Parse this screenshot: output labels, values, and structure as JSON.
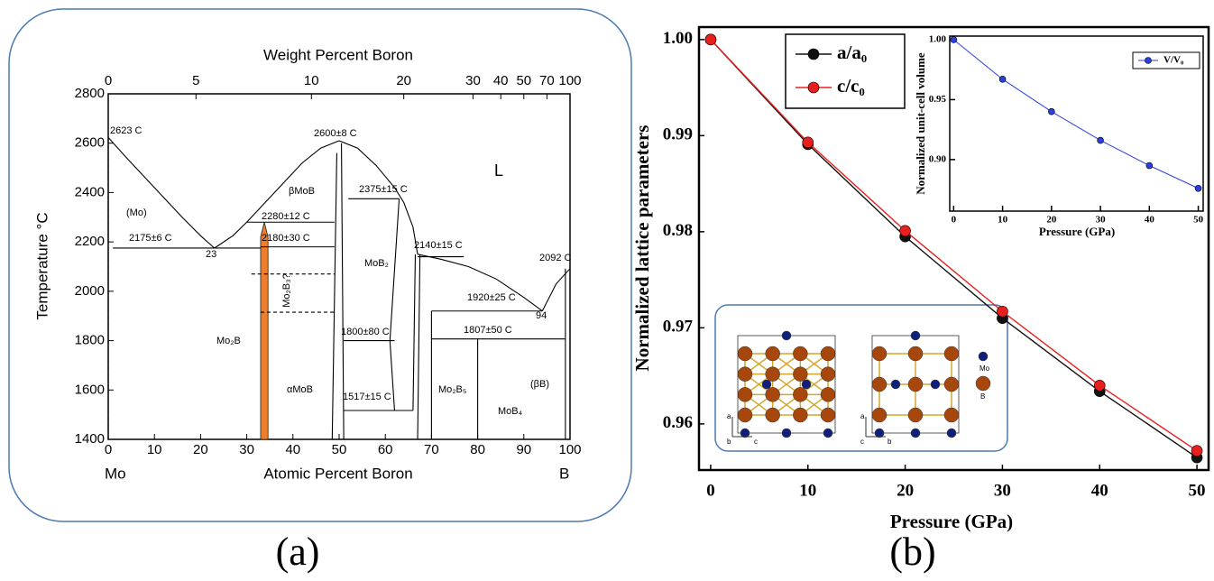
{
  "chart_data": [
    {
      "type": "phase-diagram",
      "panel_label": "(a)",
      "x_label": "Atomic Percent Boron",
      "x2_label": "Weight Percent Boron",
      "y_label": "Temperature °C",
      "xlim": [
        0,
        100
      ],
      "xticks": [
        0,
        10,
        20,
        30,
        40,
        50,
        60,
        70,
        80,
        90,
        100
      ],
      "x2ticks": [
        {
          "value": 0,
          "label": "0"
        },
        {
          "value": 19,
          "label": "5"
        },
        {
          "value": 44,
          "label": "10"
        },
        {
          "value": 64,
          "label": "20"
        },
        {
          "value": 79,
          "label": "30"
        },
        {
          "value": 85,
          "label": "40"
        },
        {
          "value": 90,
          "label": "50"
        },
        {
          "value": 95,
          "label": "70"
        },
        {
          "value": 100,
          "label": "100"
        }
      ],
      "ylim": [
        1400,
        2800
      ],
      "yticks": [
        1400,
        1600,
        1800,
        2000,
        2200,
        2400,
        2600,
        2800
      ],
      "end_labels": [
        "Mo",
        "B"
      ],
      "annotations": [
        "2623 C",
        "(Mo)",
        "2175±6 C",
        "23",
        "2600±8 C",
        "L",
        "βMoB",
        "2375±15 C",
        "2280±12 C",
        "2180±30 C",
        "MoB₂",
        "2140±15 C",
        "2092 C",
        "Mo₂B₃?",
        "1920±25 C",
        "94",
        "Mo₂B",
        "1800±80 C",
        "1807±50 C",
        "αMoB",
        "1517±15 C",
        "Mo₂B₅",
        "MoB₄",
        "(βB)"
      ],
      "boundaries": [
        {
          "x": [
            0,
            4,
            8,
            12,
            16,
            20,
            23
          ],
          "y": [
            2623,
            2540,
            2460,
            2380,
            2300,
            2225,
            2175
          ]
        },
        {
          "x": [
            23,
            27,
            30
          ],
          "y": [
            2175,
            2225,
            2280
          ]
        },
        {
          "x": [
            30,
            34,
            38,
            42,
            46,
            50
          ],
          "y": [
            2280,
            2360,
            2440,
            2520,
            2580,
            2610
          ]
        },
        {
          "x": [
            50,
            54,
            58,
            62,
            64,
            66,
            67
          ],
          "y": [
            2610,
            2580,
            2510,
            2420,
            2360,
            2260,
            2150
          ]
        },
        {
          "x": [
            67,
            72,
            78,
            84,
            90,
            94
          ],
          "y": [
            2150,
            2130,
            2100,
            2050,
            1975,
            1920
          ]
        },
        {
          "x": [
            94,
            97,
            100
          ],
          "y": [
            1920,
            2030,
            2092
          ]
        },
        {
          "x": [
            1,
            33
          ],
          "y": [
            2175,
            2175
          ]
        },
        {
          "x": [
            30,
            49
          ],
          "y": [
            2280,
            2280
          ]
        },
        {
          "x": [
            33,
            49
          ],
          "y": [
            2180,
            2180
          ]
        },
        {
          "x": [
            52,
            63
          ],
          "y": [
            2375,
            2375
          ]
        },
        {
          "x": [
            67,
            77
          ],
          "y": [
            2140,
            2140
          ]
        },
        {
          "x": [
            70,
            94
          ],
          "y": [
            1920,
            1920
          ]
        },
        {
          "x": [
            70,
            99
          ],
          "y": [
            1807,
            1807
          ]
        },
        {
          "x": [
            51,
            62
          ],
          "y": [
            1800,
            1800
          ]
        },
        {
          "x": [
            51,
            66
          ],
          "y": [
            1517,
            1517
          ]
        },
        {
          "x": [
            48.5,
            49.5
          ],
          "y": [
            1400,
            2560
          ]
        },
        {
          "x": [
            51,
            50.5
          ],
          "y": [
            1400,
            2600
          ]
        },
        {
          "x": [
            70,
            70
          ],
          "y": [
            1400,
            1920
          ]
        },
        {
          "x": [
            80,
            80
          ],
          "y": [
            1400,
            1807
          ]
        },
        {
          "x": [
            99,
            99
          ],
          "y": [
            1400,
            2092
          ]
        },
        {
          "x": [
            63,
            61,
            62
          ],
          "y": [
            2375,
            1800,
            1517
          ]
        },
        {
          "x": [
            66,
            66.5
          ],
          "y": [
            1517,
            2150
          ]
        },
        {
          "x": [
            67,
            67.5
          ],
          "y": [
            1400,
            2150
          ]
        },
        {
          "x": [
            31,
            49
          ],
          "y": [
            2070,
            2070
          ],
          "dashed": true
        },
        {
          "x": [
            33,
            49
          ],
          "y": [
            1915,
            1915
          ],
          "dashed": true
        },
        {
          "x": [
            0,
            0
          ],
          "y": [
            1400,
            2623
          ],
          "dashed": true
        }
      ],
      "regions": [
        {
          "x": [
            33,
            33,
            33.8,
            34.6,
            34.6
          ],
          "y": [
            1400,
            2220,
            2280,
            2220,
            1400
          ],
          "color": "#f07d2a"
        }
      ]
    },
    {
      "type": "line",
      "panel_label": "(b)",
      "x_label": "Pressure (GPa)",
      "y_label": "Normalized lattice parameters",
      "x": [
        0,
        10,
        20,
        30,
        40,
        50
      ],
      "series": [
        {
          "name": "a/a₀",
          "color": "#111111",
          "values": [
            1.0,
            0.9891,
            0.9795,
            0.971,
            0.9634,
            0.9565
          ]
        },
        {
          "name": "c/c₀",
          "color": "#e8201d",
          "values": [
            1.0,
            0.9893,
            0.9801,
            0.9717,
            0.964,
            0.9572
          ]
        }
      ],
      "xlim": [
        -1.2,
        51.2
      ],
      "xticks": [
        0,
        10,
        20,
        30,
        40,
        50
      ],
      "ylim": [
        0.9552,
        1.0013
      ],
      "yticks": [
        0.96,
        0.97,
        0.98,
        0.99,
        {
          "value": 1,
          "label": "1.00"
        }
      ],
      "legend": "upper left",
      "structure_labels": {
        "legend": [
          "Mo",
          "B"
        ],
        "left_axes": [
          "a",
          "b",
          "c"
        ],
        "right_axes": [
          "a",
          "c",
          "b"
        ]
      }
    },
    {
      "type": "line",
      "inset": true,
      "x_label": "Pressure (GPa)",
      "y_label": "Normalized unit-cell volume",
      "x": [
        0,
        10,
        20,
        30,
        40,
        50
      ],
      "series": [
        {
          "name": "V/V₀",
          "color": "#2a3fe0",
          "values": [
            1.0,
            0.967,
            0.94,
            0.916,
            0.895,
            0.876
          ]
        }
      ],
      "xlim": [
        -0.8,
        51
      ],
      "xticks": [
        0,
        10,
        20,
        30,
        40,
        50
      ],
      "ylim": [
        0.857,
        1.003
      ],
      "yticks": [
        {
          "value": 0.9,
          "label": "0.90"
        },
        {
          "value": 0.95,
          "label": "0.95"
        },
        {
          "value": 1,
          "label": "1.00"
        }
      ],
      "legend": "upper right"
    }
  ]
}
